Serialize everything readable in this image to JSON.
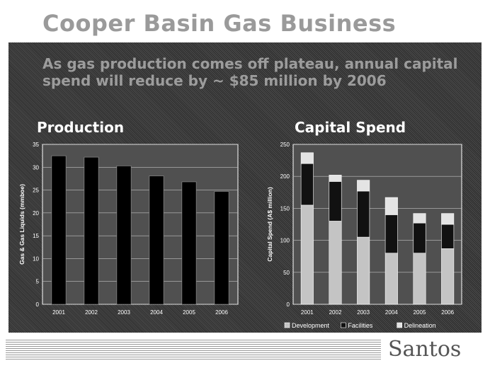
{
  "slide": {
    "title": "Cooper Basin Gas Business",
    "subtitle": "As gas production comes off plateau, annual capital spend will reduce by ~ $85 million by 2006",
    "production_title": "Production",
    "capital_title": "Capital Spend",
    "brand": "Santos"
  },
  "chart_data": [
    {
      "type": "bar",
      "title": "Production",
      "ylabel": "Gas & Gas Liquids (mmboe)",
      "categories": [
        "2001",
        "2002",
        "2003",
        "2004",
        "2005",
        "2006"
      ],
      "values": [
        32.5,
        32.2,
        30.3,
        28.1,
        26.8,
        24.7
      ],
      "ylim": [
        0,
        35
      ],
      "yticks": [
        0,
        5,
        10,
        15,
        20,
        25,
        30,
        35
      ],
      "grid": true,
      "colors": {
        "bar": "#000000",
        "plot_bg": "#505050",
        "grid": "#bfbfbf",
        "text": "#ffffff"
      }
    },
    {
      "type": "bar",
      "stacked": true,
      "title": "Capital Spend",
      "ylabel": "Capital Spend (A$ million)",
      "categories": [
        "2001",
        "2002",
        "2003",
        "2004",
        "2005",
        "2006"
      ],
      "series": [
        {
          "name": "Development",
          "values": [
            155,
            130,
            105,
            80,
            80,
            87
          ]
        },
        {
          "name": "Facilities",
          "values": [
            65,
            62,
            72,
            60,
            47,
            38
          ]
        },
        {
          "name": "Delineation",
          "values": [
            17,
            10,
            17,
            27,
            15,
            17
          ]
        }
      ],
      "ylim": [
        0,
        250
      ],
      "yticks": [
        0,
        50,
        100,
        150,
        200,
        250
      ],
      "legend": "bottom",
      "grid": true,
      "colors": {
        "Development": "#c4c4c4",
        "Facilities": "#111111",
        "Delineation": "#e4e4e4",
        "plot_bg": "#505050",
        "grid": "#bfbfbf",
        "text": "#ffffff"
      }
    }
  ]
}
